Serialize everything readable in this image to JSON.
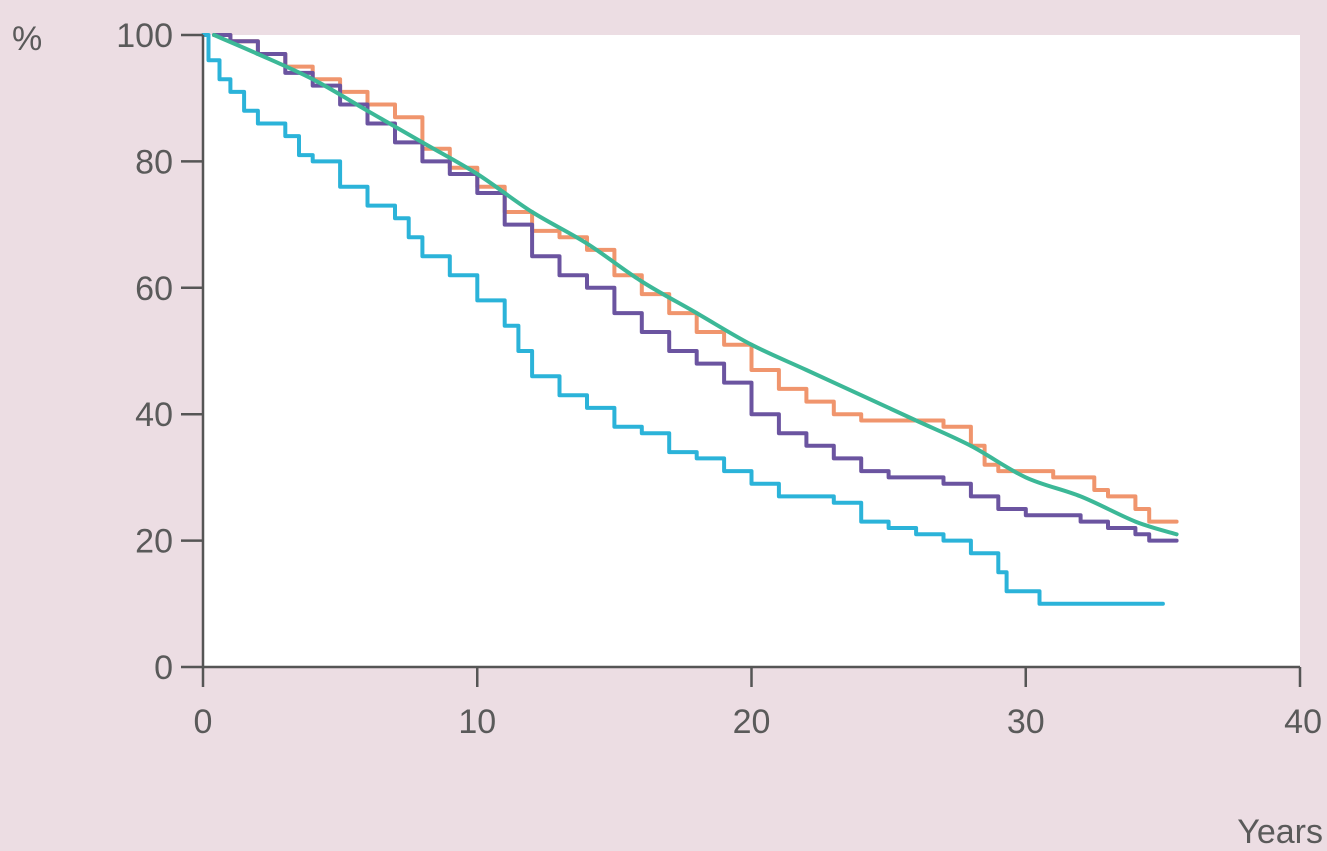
{
  "chart_data": {
    "type": "line",
    "title": "",
    "xlabel": "Years",
    "ylabel": "%",
    "xlim": [
      0,
      40
    ],
    "ylim": [
      0,
      100
    ],
    "x_ticks": [
      0,
      10,
      20,
      30,
      40
    ],
    "y_ticks": [
      0,
      20,
      40,
      60,
      80,
      100
    ],
    "x_tick_labels": [
      "0",
      "10",
      "20",
      "30",
      "40"
    ],
    "y_tick_labels": [
      "0",
      "20",
      "40",
      "60",
      "80",
      "100"
    ],
    "grid": false,
    "legend": "none",
    "colors": {
      "background": "#ecdde3",
      "plot_area": "#ffffff",
      "axis": "#555555"
    },
    "series": [
      {
        "color": "#f0956d",
        "style": "step",
        "points": [
          [
            0.4,
            100
          ],
          [
            1,
            99
          ],
          [
            2,
            97
          ],
          [
            3,
            95
          ],
          [
            4,
            93
          ],
          [
            5,
            91
          ],
          [
            6,
            89
          ],
          [
            7,
            87
          ],
          [
            8,
            82
          ],
          [
            9,
            79
          ],
          [
            10,
            76
          ],
          [
            11,
            72
          ],
          [
            12,
            69
          ],
          [
            13,
            68
          ],
          [
            14,
            66
          ],
          [
            15,
            62
          ],
          [
            16,
            59
          ],
          [
            17,
            56
          ],
          [
            18,
            53
          ],
          [
            19,
            51
          ],
          [
            20,
            47
          ],
          [
            21,
            44
          ],
          [
            22,
            42
          ],
          [
            23,
            40
          ],
          [
            24,
            39
          ],
          [
            25,
            39
          ],
          [
            26,
            39
          ],
          [
            27,
            38
          ],
          [
            28,
            35
          ],
          [
            28.5,
            32
          ],
          [
            29,
            31
          ],
          [
            30,
            31
          ],
          [
            31,
            30
          ],
          [
            32,
            30
          ],
          [
            32.5,
            28
          ],
          [
            33,
            27
          ],
          [
            34,
            25
          ],
          [
            34.5,
            23
          ],
          [
            35.5,
            23
          ]
        ]
      },
      {
        "color": "#6b54a0",
        "style": "step",
        "points": [
          [
            0.4,
            100
          ],
          [
            1,
            99
          ],
          [
            2,
            97
          ],
          [
            3,
            94
          ],
          [
            4,
            92
          ],
          [
            5,
            89
          ],
          [
            6,
            86
          ],
          [
            7,
            83
          ],
          [
            8,
            80
          ],
          [
            9,
            78
          ],
          [
            10,
            75
          ],
          [
            11,
            70
          ],
          [
            12,
            65
          ],
          [
            13,
            62
          ],
          [
            14,
            60
          ],
          [
            15,
            56
          ],
          [
            16,
            53
          ],
          [
            17,
            50
          ],
          [
            18,
            48
          ],
          [
            19,
            45
          ],
          [
            20,
            40
          ],
          [
            21,
            37
          ],
          [
            22,
            35
          ],
          [
            23,
            33
          ],
          [
            24,
            31
          ],
          [
            25,
            30
          ],
          [
            26,
            30
          ],
          [
            27,
            29
          ],
          [
            28,
            27
          ],
          [
            29,
            25
          ],
          [
            30,
            24
          ],
          [
            31,
            24
          ],
          [
            32,
            23
          ],
          [
            33,
            22
          ],
          [
            34,
            21
          ],
          [
            34.5,
            20
          ],
          [
            35.5,
            20
          ]
        ]
      },
      {
        "color": "#2bb3d9",
        "style": "step",
        "points": [
          [
            0,
            100
          ],
          [
            0.2,
            96
          ],
          [
            0.6,
            93
          ],
          [
            1,
            91
          ],
          [
            1.5,
            88
          ],
          [
            2,
            86
          ],
          [
            3,
            84
          ],
          [
            3.5,
            81
          ],
          [
            4,
            80
          ],
          [
            5,
            76
          ],
          [
            6,
            73
          ],
          [
            7,
            71
          ],
          [
            7.5,
            68
          ],
          [
            8,
            65
          ],
          [
            9,
            62
          ],
          [
            10,
            58
          ],
          [
            11,
            54
          ],
          [
            11.5,
            50
          ],
          [
            12,
            46
          ],
          [
            13,
            43
          ],
          [
            14,
            41
          ],
          [
            15,
            38
          ],
          [
            16,
            37
          ],
          [
            17,
            34
          ],
          [
            18,
            33
          ],
          [
            19,
            31
          ],
          [
            20,
            29
          ],
          [
            21,
            27
          ],
          [
            22,
            27
          ],
          [
            23,
            26
          ],
          [
            24,
            23
          ],
          [
            25,
            22
          ],
          [
            26,
            21
          ],
          [
            27,
            20
          ],
          [
            28,
            18
          ],
          [
            29,
            15
          ],
          [
            29.3,
            12
          ],
          [
            30,
            12
          ],
          [
            30.5,
            10
          ],
          [
            35,
            10
          ]
        ]
      },
      {
        "color": "#3cb897",
        "style": "smooth",
        "points": [
          [
            0.4,
            100
          ],
          [
            2,
            97
          ],
          [
            4,
            93
          ],
          [
            6,
            88
          ],
          [
            8,
            83
          ],
          [
            10,
            78
          ],
          [
            12,
            72
          ],
          [
            14,
            67
          ],
          [
            16,
            61
          ],
          [
            18,
            56
          ],
          [
            20,
            51
          ],
          [
            22,
            47
          ],
          [
            24,
            43
          ],
          [
            26,
            39
          ],
          [
            28,
            35
          ],
          [
            30,
            30
          ],
          [
            32,
            27
          ],
          [
            34,
            23
          ],
          [
            35.5,
            21
          ]
        ]
      }
    ]
  }
}
